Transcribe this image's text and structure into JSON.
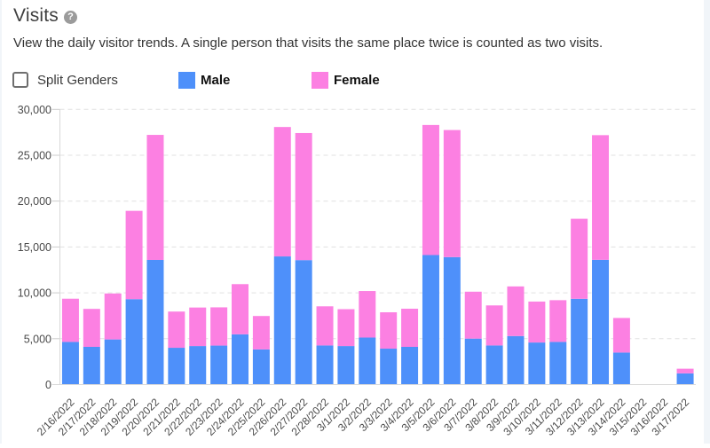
{
  "header": {
    "title": "Visits",
    "help_icon": "question-mark-circle-icon",
    "help_glyph": "?",
    "subtitle": "View the daily visitor trends. A single person that visits the same place twice is counted as two visits."
  },
  "controls": {
    "split_genders_checkbox": {
      "label": "Split Genders",
      "checked": false
    }
  },
  "legend": [
    {
      "label": "Male",
      "color": "#4e90fa"
    },
    {
      "label": "Female",
      "color": "#fc80e2"
    }
  ],
  "colors": {
    "male": "#4e90fa",
    "female": "#fc80e2",
    "gridline": "#e1e1e1",
    "axis": "#d9d9d9",
    "tick": "#cccccc",
    "axis_label": "#4a4a4a",
    "page_background": "#f1f5f9"
  },
  "chart_data": {
    "type": "bar",
    "stacked": true,
    "title": "Visits",
    "xlabel": "",
    "ylabel": "",
    "ylim": [
      0,
      30000
    ],
    "ytick_interval": 5000,
    "ytick_labels": [
      "0",
      "5,000",
      "10,000",
      "15,000",
      "20,000",
      "25,000",
      "30,000"
    ],
    "grid": "dashed-horizontal",
    "legend_position": "top",
    "categories": [
      "2/16/2022",
      "2/17/2022",
      "2/18/2022",
      "2/19/2022",
      "2/20/2022",
      "2/21/2022",
      "2/22/2022",
      "2/23/2022",
      "2/24/2022",
      "2/25/2022",
      "2/26/2022",
      "2/27/2022",
      "2/28/2022",
      "3/1/2022",
      "3/2/2022",
      "3/3/2022",
      "3/4/2022",
      "3/5/2022",
      "3/6/2022",
      "3/7/2022",
      "3/8/2022",
      "3/9/2022",
      "3/10/2022",
      "3/11/2022",
      "3/12/2022",
      "3/13/2022",
      "3/14/2022",
      "3/15/2022",
      "3/16/2022",
      "3/17/2022"
    ],
    "series": [
      {
        "name": "Male",
        "color": "#4e90fa",
        "values": [
          4650,
          4110,
          4920,
          9310,
          13590,
          4010,
          4200,
          4250,
          5480,
          3830,
          13970,
          13570,
          4265,
          4200,
          5125,
          3915,
          4110,
          14120,
          13895,
          5010,
          4265,
          5290,
          4585,
          4650,
          9350,
          13600,
          3490,
          0,
          0,
          1220
        ]
      },
      {
        "name": "Female",
        "color": "#fc80e2",
        "values": [
          4710,
          4140,
          5010,
          9630,
          13630,
          3950,
          4200,
          4170,
          5470,
          3645,
          14110,
          13850,
          4265,
          4020,
          5075,
          3965,
          4160,
          14180,
          13855,
          5115,
          4365,
          5410,
          4465,
          4550,
          8725,
          13590,
          3770,
          0,
          0,
          510
        ]
      }
    ]
  }
}
